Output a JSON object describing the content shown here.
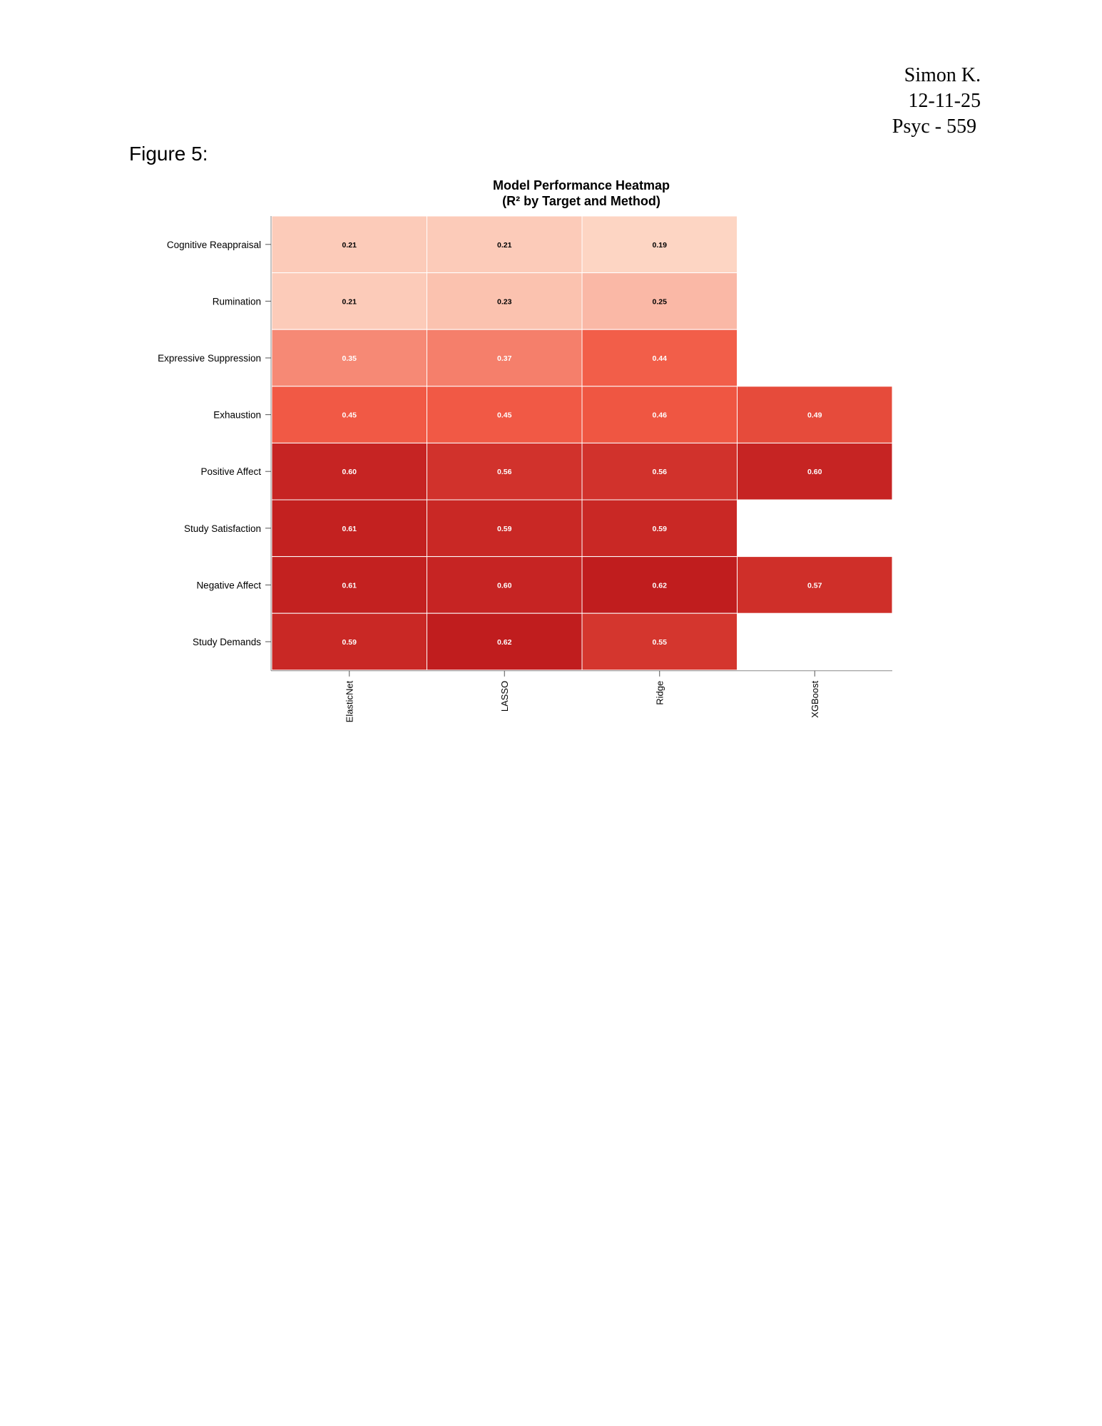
{
  "header": {
    "author": "Simon K.",
    "date": "12-11-25",
    "course": "Psyc - 559"
  },
  "figure_label": "Figure 5:",
  "chart_data": {
    "type": "heatmap",
    "title_line1": "Model Performance Heatmap",
    "title_line2": "(R² by Target and Method)",
    "rows": [
      "Cognitive Reappraisal",
      "Rumination",
      "Expressive Suppression",
      "Exhaustion",
      "Positive Affect",
      "Study Satisfaction",
      "Negative Affect",
      "Study Demands"
    ],
    "columns": [
      "ElasticNet",
      "LASSO",
      "Ridge",
      "XGBoost"
    ],
    "values": [
      [
        0.21,
        0.21,
        0.19,
        null
      ],
      [
        0.21,
        0.23,
        0.25,
        null
      ],
      [
        0.35,
        0.37,
        0.44,
        null
      ],
      [
        0.45,
        0.45,
        0.46,
        0.49
      ],
      [
        0.6,
        0.56,
        0.56,
        0.6
      ],
      [
        0.61,
        0.59,
        0.59,
        null
      ],
      [
        0.61,
        0.6,
        0.62,
        0.57
      ],
      [
        0.59,
        0.62,
        0.55,
        null
      ]
    ],
    "color_scale": {
      "low_color": "#fdd5c3",
      "high_color": "#c01d1e",
      "light_text_color": "#000000",
      "dark_text_color": "#ffffff"
    },
    "grid": true
  }
}
